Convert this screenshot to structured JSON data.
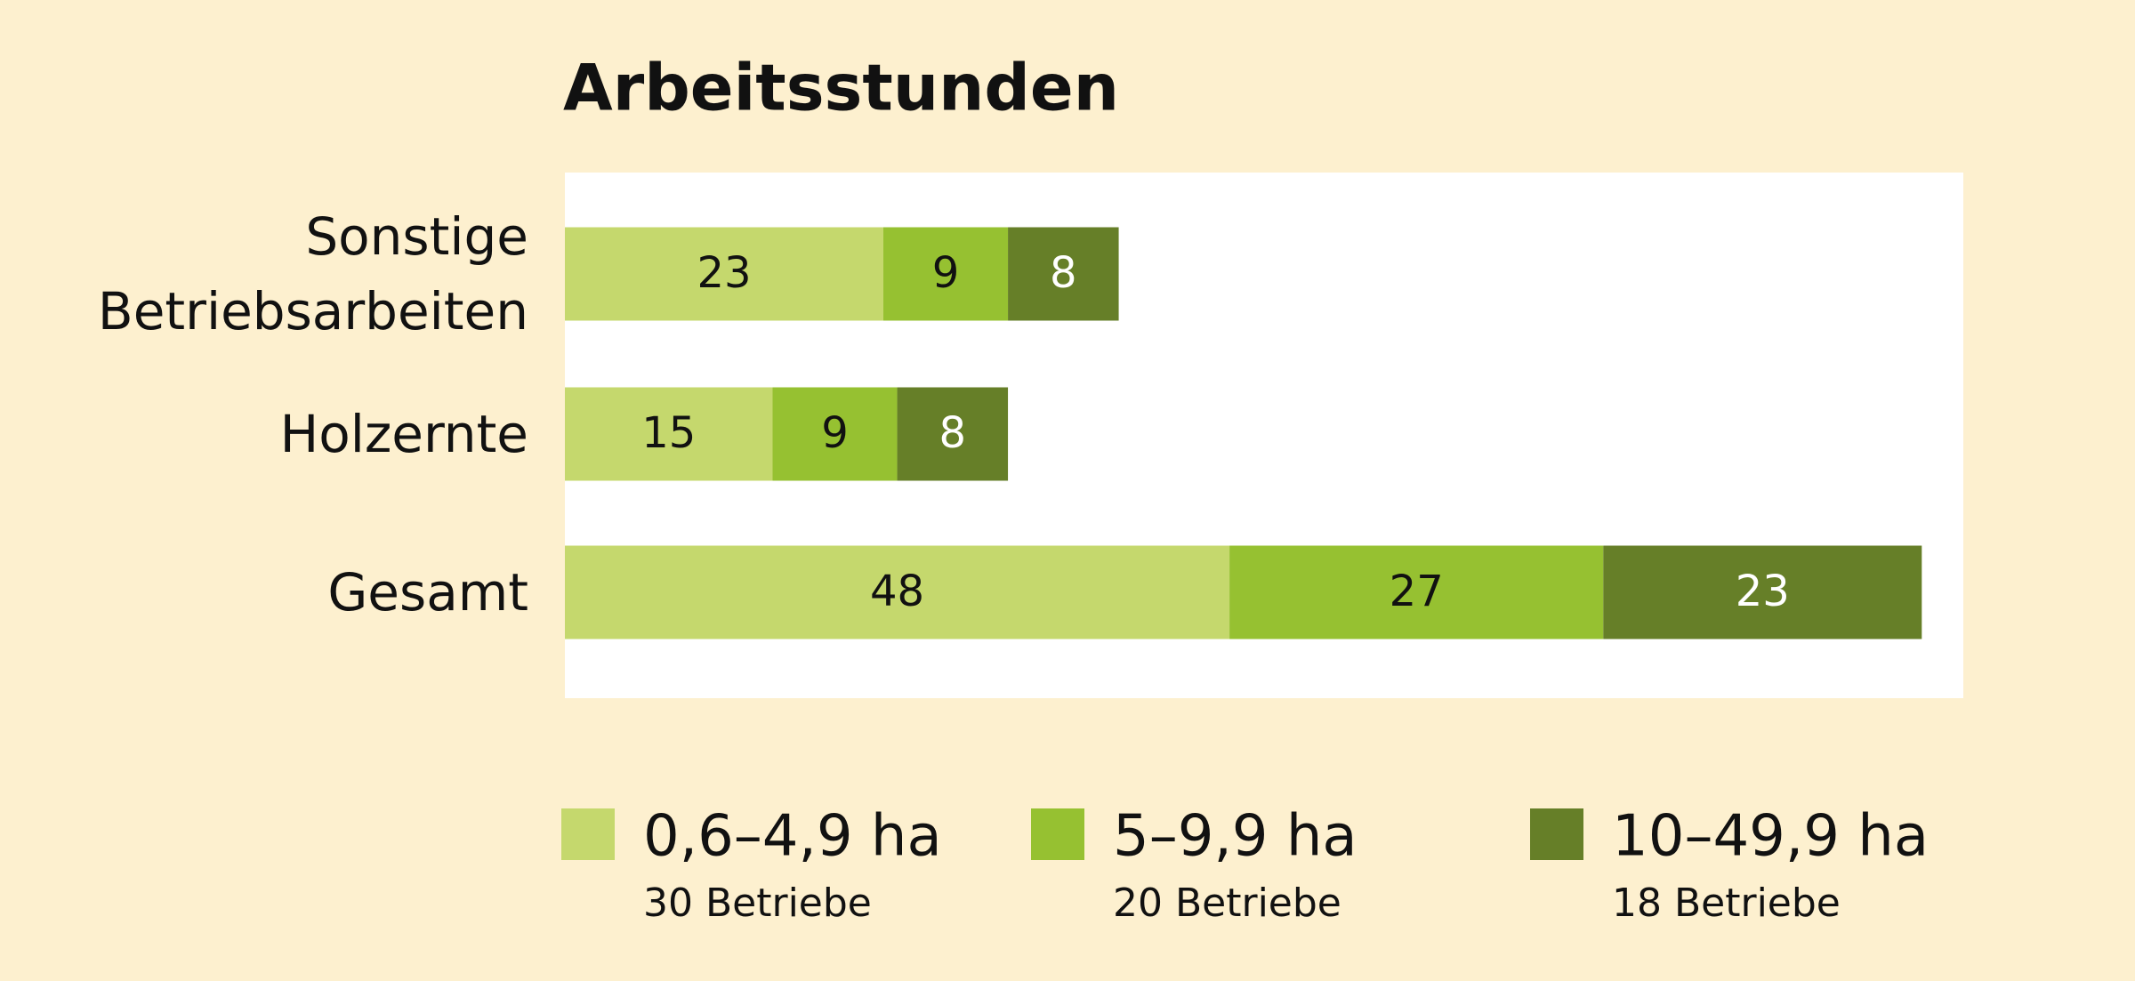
{
  "chart_data": {
    "type": "stacked-bar-horizontal",
    "title": "Arbeitsstunden",
    "categories": [
      "Sonstige Betriebsarbeiten",
      "Holzernte",
      "Gesamt"
    ],
    "series": [
      {
        "name": "0,6–4,9 ha",
        "note": "30 Betriebe",
        "color": "#c5d86d",
        "values": [
          23,
          15,
          48
        ]
      },
      {
        "name": "5–9,9 ha",
        "note": "20 Betriebe",
        "color": "#96c131",
        "values": [
          9,
          9,
          27
        ]
      },
      {
        "name": "10–49,9 ha",
        "note": "18 Betriebe",
        "color": "#667f28",
        "values": [
          8,
          8,
          23
        ]
      }
    ],
    "xlim": [
      0,
      101
    ]
  }
}
